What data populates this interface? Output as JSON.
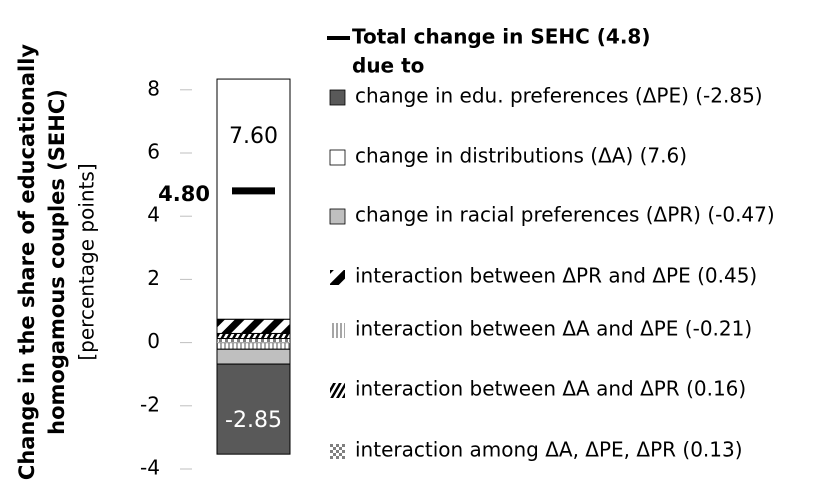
{
  "chart_data": {
    "type": "stacked-bar",
    "y_label": [
      "Change in the share of educationally",
      "homogamous couples (SEHC)",
      "[percentage points]"
    ],
    "ylim": [
      -4,
      8.5
    ],
    "yticks": [
      -4,
      -2,
      0,
      2,
      4,
      6,
      8
    ],
    "total": {
      "name": "Total change in SEHC (4.8)",
      "value": 4.8,
      "value_label": "4.80",
      "color": "#000000"
    },
    "legend_subtitle": "due to",
    "series": [
      {
        "name": "change in edu. preferences (ΔPE) (-2.85)",
        "color": "#595959",
        "pattern": "solid",
        "values": [
          -2.85
        ],
        "value_labels": [
          "-2.85"
        ]
      },
      {
        "name": "change in distributions (ΔA) (7.6)",
        "color": "#ffffff",
        "pattern": "solid",
        "values": [
          7.6
        ],
        "value_labels": [
          "7.60"
        ]
      },
      {
        "name": "change in racial preferences (ΔPR) (-0.47)",
        "color": "#bfbfbf",
        "pattern": "solid",
        "values": [
          -0.47
        ]
      },
      {
        "name": "interaction between ΔPR and ΔPE (0.45)",
        "color": "#000000",
        "pattern": "wide-diagonal",
        "values": [
          0.45
        ]
      },
      {
        "name": "interaction between ΔA and ΔPE (-0.21)",
        "color": "#a6a6a6",
        "pattern": "vertical",
        "values": [
          -0.21
        ]
      },
      {
        "name": "interaction between ΔA and ΔPR (0.16)",
        "color": "#000000",
        "pattern": "diagonal",
        "values": [
          0.16
        ]
      },
      {
        "name": "interaction among ΔA, ΔPE, ΔPR (0.13)",
        "color": "#7f7f7f",
        "pattern": "checker",
        "values": [
          0.13
        ]
      }
    ]
  }
}
